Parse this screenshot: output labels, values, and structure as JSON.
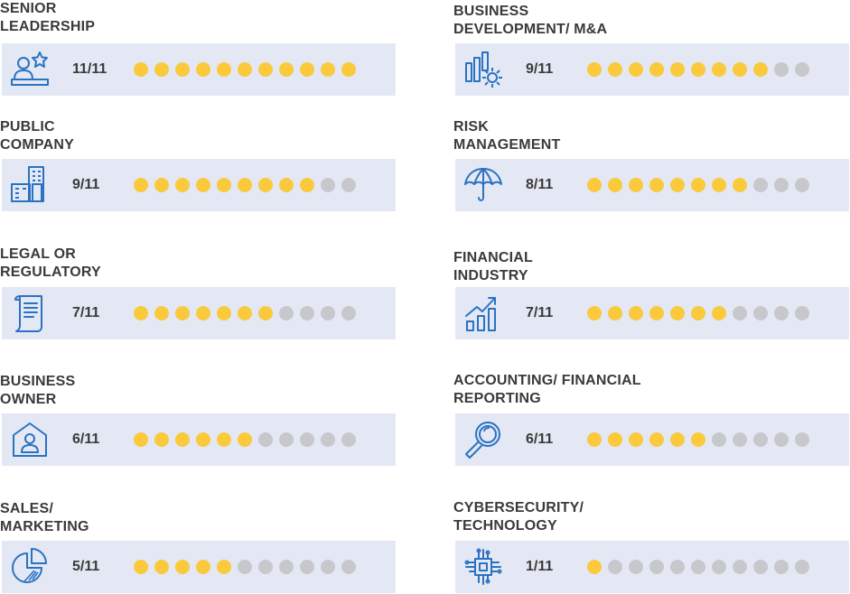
{
  "colors": {
    "filled_dot": "#fbc93c",
    "empty_dot": "#c7c8cc",
    "bar_background": "#e3e8f4",
    "icon_stroke": "#2b72c2",
    "text": "#3a3a3a"
  },
  "items": [
    {
      "title_line1": "SENIOR",
      "title_line2": "LEADERSHIP",
      "score": "11/11",
      "filled": 11,
      "total": 11,
      "icon": "leader-icon"
    },
    {
      "title_line1": "PUBLIC",
      "title_line2": "COMPANY",
      "score": "9/11",
      "filled": 9,
      "total": 11,
      "icon": "buildings-icon"
    },
    {
      "title_line1": "LEGAL OR",
      "title_line2": "REGULATORY",
      "score": "7/11",
      "filled": 7,
      "total": 11,
      "icon": "scroll-document-icon"
    },
    {
      "title_line1": "BUSINESS",
      "title_line2": "OWNER",
      "score": "6/11",
      "filled": 6,
      "total": 11,
      "icon": "house-person-icon"
    },
    {
      "title_line1": "SALES/",
      "title_line2": "MARKETING",
      "score": "5/11",
      "filled": 5,
      "total": 11,
      "icon": "pie-chart-icon"
    },
    {
      "title_line1": "BUSINESS",
      "title_line2": "DEVELOPMENT/ M&A",
      "score": "9/11",
      "filled": 9,
      "total": 11,
      "icon": "bar-gear-icon"
    },
    {
      "title_line1": "RISK",
      "title_line2": "MANAGEMENT",
      "score": "8/11",
      "filled": 8,
      "total": 11,
      "icon": "umbrella-icon"
    },
    {
      "title_line1": "FINANCIAL",
      "title_line2": "INDUSTRY",
      "score": "7/11",
      "filled": 7,
      "total": 11,
      "icon": "growth-chart-icon"
    },
    {
      "title_line1": "ACCOUNTING/ FINANCIAL",
      "title_line2": "REPORTING",
      "score": "6/11",
      "filled": 6,
      "total": 11,
      "icon": "magnifier-icon"
    },
    {
      "title_line1": "CYBERSECURITY/",
      "title_line2": "TECHNOLOGY",
      "score": "1/11",
      "filled": 1,
      "total": 11,
      "icon": "circuit-chip-icon"
    }
  ]
}
